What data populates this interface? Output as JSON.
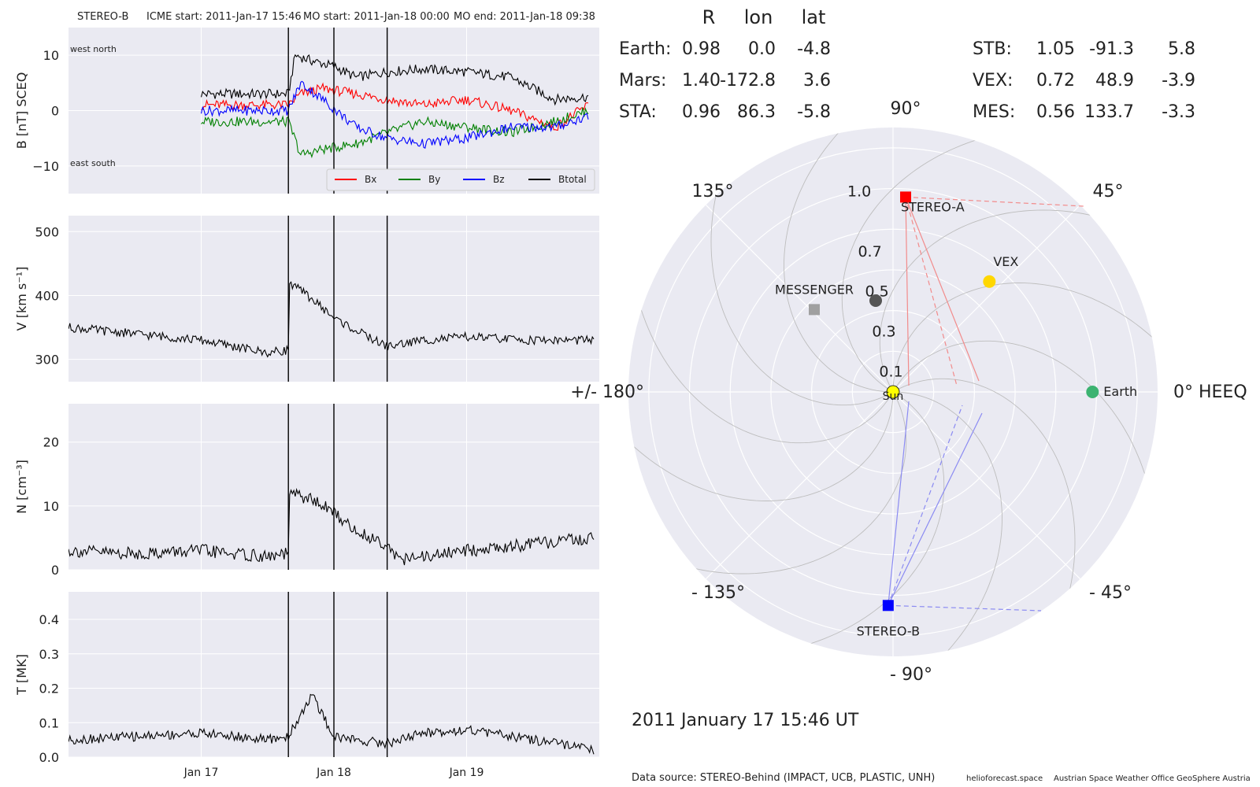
{
  "header": {
    "spacecraft": "STEREO-B",
    "icme_start": "ICME start: 2011-Jan-17 15:46",
    "mo_start": "MO start: 2011-Jan-18 00:00",
    "mo_end": "MO end: 2011-Jan-18 09:38"
  },
  "chart_data": [
    {
      "type": "line",
      "ylabel": "B [nT] SCEQ",
      "ylim": [
        -15,
        15
      ],
      "yticks": [
        "10",
        "0",
        "−10"
      ],
      "corner_labels": {
        "top": "west    north",
        "bottom": "east    south"
      },
      "legend": [
        "Bx",
        "By",
        "Bz",
        "Btotal"
      ],
      "series": [
        {
          "name": "Btotal",
          "color": "#000000",
          "x": [
            "2011-01-17 00:00",
            "2011-01-17 06:00",
            "2011-01-17 12:00",
            "2011-01-17 15:46",
            "2011-01-17 17:00",
            "2011-01-17 20:00",
            "2011-01-18 00:00",
            "2011-01-18 04:00",
            "2011-01-18 09:38",
            "2011-01-18 16:00",
            "2011-01-19 00:00",
            "2011-01-19 08:00",
            "2011-01-19 16:00",
            "2011-01-19 22:00"
          ],
          "values": [
            3.0,
            3.0,
            3.0,
            3.0,
            10.0,
            9.0,
            8.0,
            6.0,
            7.0,
            7.5,
            7.0,
            6.0,
            2.0,
            2.5
          ]
        },
        {
          "name": "Bx",
          "color": "#ff0000",
          "x": [
            "2011-01-17 00:00",
            "2011-01-17 08:00",
            "2011-01-17 15:46",
            "2011-01-17 18:00",
            "2011-01-17 22:00",
            "2011-01-18 04:00",
            "2011-01-18 09:38",
            "2011-01-18 16:00",
            "2011-01-19 00:00",
            "2011-01-19 08:00",
            "2011-01-19 16:00",
            "2011-01-19 22:00"
          ],
          "values": [
            1.0,
            1.0,
            1.0,
            3.0,
            4.0,
            3.0,
            2.0,
            1.0,
            2.0,
            0.0,
            -3.0,
            1.0
          ]
        },
        {
          "name": "By",
          "color": "#008000",
          "x": [
            "2011-01-17 00:00",
            "2011-01-17 08:00",
            "2011-01-17 15:46",
            "2011-01-17 18:00",
            "2011-01-17 22:00",
            "2011-01-18 04:00",
            "2011-01-18 09:38",
            "2011-01-18 16:00",
            "2011-01-19 00:00",
            "2011-01-19 08:00",
            "2011-01-19 16:00",
            "2011-01-19 22:00"
          ],
          "values": [
            -2.0,
            -2.0,
            -2.0,
            -8.0,
            -7.0,
            -6.0,
            -4.0,
            -2.0,
            -3.0,
            -4.0,
            -2.0,
            0.0
          ]
        },
        {
          "name": "Bz",
          "color": "#0000ff",
          "x": [
            "2011-01-17 00:00",
            "2011-01-17 08:00",
            "2011-01-17 15:46",
            "2011-01-17 18:00",
            "2011-01-17 22:00",
            "2011-01-18 04:00",
            "2011-01-18 09:38",
            "2011-01-18 16:00",
            "2011-01-19 00:00",
            "2011-01-19 08:00",
            "2011-01-19 16:00",
            "2011-01-19 22:00"
          ],
          "values": [
            0.0,
            0.0,
            0.0,
            5.0,
            2.0,
            -3.0,
            -5.0,
            -6.0,
            -5.0,
            -3.0,
            -3.0,
            -1.0
          ]
        }
      ]
    },
    {
      "type": "line",
      "ylabel": "V [km s⁻¹]",
      "ylim": [
        265,
        525
      ],
      "yticks": [
        "500",
        "400",
        "300"
      ],
      "series": [
        {
          "color": "#000000",
          "x": [
            "2011-01-16 00:00",
            "2011-01-16 12:00",
            "2011-01-17 00:00",
            "2011-01-17 06:00",
            "2011-01-17 12:00",
            "2011-01-17 15:46",
            "2011-01-17 16:00",
            "2011-01-17 20:00",
            "2011-01-18 00:00",
            "2011-01-18 04:00",
            "2011-01-18 09:38",
            "2011-01-18 16:00",
            "2011-01-19 00:00",
            "2011-01-19 12:00",
            "2011-01-19 23:00"
          ],
          "values": [
            350,
            340,
            330,
            320,
            310,
            315,
            420,
            395,
            365,
            345,
            320,
            330,
            335,
            330,
            330
          ]
        }
      ]
    },
    {
      "type": "line",
      "ylabel": "N [cm⁻³]",
      "ylim": [
        0,
        26
      ],
      "yticks": [
        "20",
        "10",
        "0"
      ],
      "series": [
        {
          "color": "#000000",
          "x": [
            "2011-01-16 00:00",
            "2011-01-16 12:00",
            "2011-01-17 00:00",
            "2011-01-17 12:00",
            "2011-01-17 15:46",
            "2011-01-17 16:00",
            "2011-01-17 20:00",
            "2011-01-18 00:00",
            "2011-01-18 04:00",
            "2011-01-18 09:38",
            "2011-01-18 12:00",
            "2011-01-18 16:00",
            "2011-01-19 00:00",
            "2011-01-19 12:00",
            "2011-01-19 23:00"
          ],
          "values": [
            3,
            2.5,
            3,
            2,
            2.5,
            12,
            11,
            9,
            6,
            4,
            1.5,
            2,
            3,
            4,
            5
          ]
        }
      ]
    },
    {
      "type": "line",
      "ylabel": "T [MK]",
      "ylim": [
        0,
        0.48
      ],
      "yticks": [
        "0.4",
        "0.3",
        "0.2",
        "0.1",
        "0.0"
      ],
      "series": [
        {
          "color": "#000000",
          "x": [
            "2011-01-16 00:00",
            "2011-01-16 12:00",
            "2011-01-17 00:00",
            "2011-01-17 12:00",
            "2011-01-17 15:46",
            "2011-01-17 20:00",
            "2011-01-18 00:00",
            "2011-01-18 04:00",
            "2011-01-18 09:38",
            "2011-01-18 16:00",
            "2011-01-19 00:00",
            "2011-01-19 12:00",
            "2011-01-19 23:00"
          ],
          "values": [
            0.05,
            0.06,
            0.07,
            0.05,
            0.06,
            0.18,
            0.06,
            0.05,
            0.04,
            0.07,
            0.08,
            0.05,
            0.02
          ]
        }
      ]
    },
    {
      "type": "scatter",
      "title": "2011 January 17  15:46 UT",
      "polar": true,
      "angle_labels": [
        "90°",
        "45°",
        "0° HEEQ",
        "- 45°",
        "- 90°",
        "- 135°",
        "+/- 180°",
        "135°"
      ],
      "radial_ticks": [
        "0.1",
        "0.3",
        "0.5",
        "0.7",
        "1.0"
      ],
      "points": [
        {
          "label": "Sun",
          "r": 0.0,
          "lon": 0.0,
          "color": "#ffff00",
          "marker": "circle"
        },
        {
          "label": "Earth",
          "r": 0.98,
          "lon": 0.0,
          "color": "#3cb371",
          "marker": "circle"
        },
        {
          "label": "STEREO-A",
          "r": 0.96,
          "lon": 86.3,
          "color": "#ff0000",
          "marker": "square"
        },
        {
          "label": "STEREO-B",
          "r": 1.05,
          "lon": -91.3,
          "color": "#0000ff",
          "marker": "square"
        },
        {
          "label": "VEX",
          "r": 0.72,
          "lon": 48.9,
          "color": "#ffd700",
          "marker": "circle"
        },
        {
          "label": "MESSENGER",
          "r": 0.56,
          "lon": 133.7,
          "color": "#a0a0a0",
          "marker": "square"
        },
        {
          "label": "",
          "r": 1.4,
          "lon": -172.8,
          "color": "#555555",
          "marker": "circle"
        }
      ]
    }
  ],
  "x_axis": {
    "ticks": [
      {
        "label": "Jan 17",
        "x": "2011-01-17 00:00"
      },
      {
        "label": "Jan 18",
        "x": "2011-01-18 00:00"
      },
      {
        "label": "Jan 19",
        "x": "2011-01-19 00:00"
      }
    ],
    "event_lines": [
      "2011-01-17 15:46",
      "2011-01-18 00:00",
      "2011-01-18 09:38"
    ]
  },
  "positions": {
    "headers": [
      "R",
      "lon",
      "lat"
    ],
    "left": [
      {
        "name": "Earth:",
        "R": "0.98",
        "lon": "0.0",
        "lat": "-4.8",
        "color": "#3cb371"
      },
      {
        "name": "Mars:",
        "R": "1.40",
        "lon": "-172.8",
        "lat": "3.6",
        "color": "#f4634e"
      },
      {
        "name": "STA:",
        "R": "0.96",
        "lon": "86.3",
        "lat": "-5.8",
        "color": "#ff0000"
      }
    ],
    "right": [
      {
        "name": "STB:",
        "R": "1.05",
        "lon": "-91.3",
        "lat": "5.8",
        "color": "#0000ff"
      },
      {
        "name": "VEX:",
        "R": "0.72",
        "lon": "48.9",
        "lat": "-3.9",
        "color": "#ffa500"
      },
      {
        "name": "MES:",
        "R": "0.56",
        "lon": "133.7",
        "lat": "-3.3",
        "color": "#a9a9a9"
      }
    ]
  },
  "footer": {
    "source": "Data source: STEREO-Behind (IMPACT, UCB, PLASTIC, UNH)",
    "credit1": "helioforecast.space",
    "credit2": "Austrian Space Weather Office",
    "credit3": "GeoSphere Austria"
  }
}
